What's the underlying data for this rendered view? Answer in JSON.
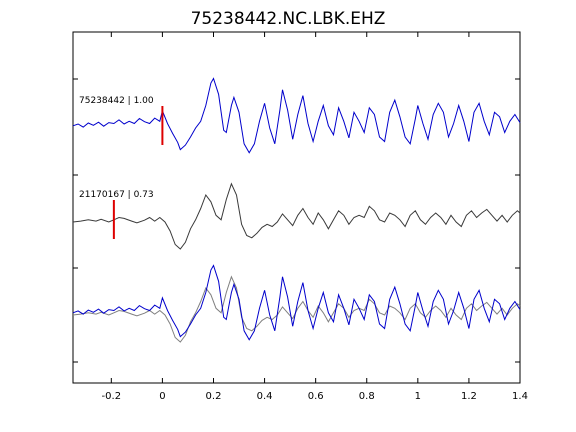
{
  "chart_data": {
    "type": "line",
    "title": "75238442.NC.LBK.EHZ",
    "xlabel": "",
    "ylabel": "",
    "xlim": [
      -0.35,
      1.4
    ],
    "xticks": [
      -0.2,
      0,
      0.2,
      0.4,
      0.6,
      0.8,
      1,
      1.2,
      1.4
    ],
    "xtick_labels": [
      "-0.2",
      "0",
      "0.2",
      "0.4",
      "0.6",
      "0.8",
      "1",
      "1.2",
      "1.4"
    ],
    "grid": false,
    "legend": "none",
    "colors": {
      "master": "#0000cc",
      "template": "#3a3a3a",
      "overlay_template": "#808080",
      "pick": "#dd0000"
    },
    "traces": [
      {
        "label": "75238442 | 1.00",
        "color_key": "master",
        "pick_time": 0.0,
        "points": [
          [
            -0.35,
            0.05
          ],
          [
            -0.33,
            0.09
          ],
          [
            -0.31,
            0.02
          ],
          [
            -0.29,
            0.11
          ],
          [
            -0.27,
            0.06
          ],
          [
            -0.25,
            0.13
          ],
          [
            -0.23,
            0.04
          ],
          [
            -0.21,
            0.12
          ],
          [
            -0.19,
            0.1
          ],
          [
            -0.17,
            0.18
          ],
          [
            -0.15,
            0.09
          ],
          [
            -0.13,
            0.15
          ],
          [
            -0.11,
            0.1
          ],
          [
            -0.09,
            0.21
          ],
          [
            -0.07,
            0.14
          ],
          [
            -0.05,
            0.1
          ],
          [
            -0.03,
            0.22
          ],
          [
            -0.01,
            0.15
          ],
          [
            0.0,
            0.38
          ],
          [
            0.02,
            0.1
          ],
          [
            0.04,
            -0.12
          ],
          [
            0.06,
            -0.32
          ],
          [
            0.07,
            -0.48
          ],
          [
            0.09,
            -0.38
          ],
          [
            0.11,
            -0.2
          ],
          [
            0.13,
            0.0
          ],
          [
            0.15,
            0.15
          ],
          [
            0.17,
            0.5
          ],
          [
            0.19,
            1.0
          ],
          [
            0.2,
            1.1
          ],
          [
            0.22,
            0.75
          ],
          [
            0.24,
            -0.05
          ],
          [
            0.25,
            -0.1
          ],
          [
            0.27,
            0.5
          ],
          [
            0.28,
            0.68
          ],
          [
            0.3,
            0.35
          ],
          [
            0.32,
            -0.35
          ],
          [
            0.34,
            -0.55
          ],
          [
            0.36,
            -0.35
          ],
          [
            0.38,
            0.15
          ],
          [
            0.4,
            0.55
          ],
          [
            0.42,
            0.0
          ],
          [
            0.44,
            -0.35
          ],
          [
            0.46,
            0.4
          ],
          [
            0.47,
            0.85
          ],
          [
            0.49,
            0.4
          ],
          [
            0.51,
            -0.25
          ],
          [
            0.53,
            0.3
          ],
          [
            0.55,
            0.72
          ],
          [
            0.57,
            0.1
          ],
          [
            0.59,
            -0.3
          ],
          [
            0.61,
            0.15
          ],
          [
            0.63,
            0.5
          ],
          [
            0.65,
            0.05
          ],
          [
            0.67,
            -0.15
          ],
          [
            0.69,
            0.45
          ],
          [
            0.71,
            0.15
          ],
          [
            0.73,
            -0.22
          ],
          [
            0.75,
            0.35
          ],
          [
            0.77,
            0.15
          ],
          [
            0.79,
            -0.1
          ],
          [
            0.81,
            0.45
          ],
          [
            0.83,
            0.3
          ],
          [
            0.85,
            -0.2
          ],
          [
            0.87,
            -0.3
          ],
          [
            0.89,
            0.35
          ],
          [
            0.91,
            0.62
          ],
          [
            0.93,
            0.25
          ],
          [
            0.95,
            -0.2
          ],
          [
            0.97,
            -0.35
          ],
          [
            0.99,
            0.2
          ],
          [
            1.0,
            0.5
          ],
          [
            1.02,
            0.1
          ],
          [
            1.04,
            -0.25
          ],
          [
            1.06,
            0.3
          ],
          [
            1.08,
            0.55
          ],
          [
            1.1,
            0.35
          ],
          [
            1.12,
            -0.2
          ],
          [
            1.14,
            0.1
          ],
          [
            1.16,
            0.5
          ],
          [
            1.18,
            0.15
          ],
          [
            1.2,
            -0.3
          ],
          [
            1.22,
            0.35
          ],
          [
            1.24,
            0.55
          ],
          [
            1.26,
            0.15
          ],
          [
            1.28,
            -0.15
          ],
          [
            1.3,
            0.35
          ],
          [
            1.32,
            0.25
          ],
          [
            1.34,
            -0.1
          ],
          [
            1.36,
            0.15
          ],
          [
            1.38,
            0.3
          ],
          [
            1.4,
            0.12
          ]
        ]
      },
      {
        "label": "21170167 | 0.73",
        "color_key": "template",
        "pick_time": -0.19,
        "points": [
          [
            -0.35,
            0.0
          ],
          [
            -0.32,
            0.02
          ],
          [
            -0.29,
            0.05
          ],
          [
            -0.26,
            0.02
          ],
          [
            -0.24,
            0.06
          ],
          [
            -0.21,
            0.0
          ],
          [
            -0.19,
            0.05
          ],
          [
            -0.17,
            0.1
          ],
          [
            -0.15,
            0.08
          ],
          [
            -0.12,
            0.02
          ],
          [
            -0.1,
            -0.02
          ],
          [
            -0.07,
            0.04
          ],
          [
            -0.05,
            0.1
          ],
          [
            -0.03,
            0.02
          ],
          [
            -0.01,
            0.1
          ],
          [
            0.01,
            0.0
          ],
          [
            0.03,
            -0.2
          ],
          [
            0.05,
            -0.5
          ],
          [
            0.07,
            -0.6
          ],
          [
            0.09,
            -0.45
          ],
          [
            0.11,
            -0.15
          ],
          [
            0.13,
            0.05
          ],
          [
            0.15,
            0.3
          ],
          [
            0.17,
            0.6
          ],
          [
            0.19,
            0.45
          ],
          [
            0.21,
            0.15
          ],
          [
            0.23,
            0.05
          ],
          [
            0.25,
            0.5
          ],
          [
            0.27,
            0.85
          ],
          [
            0.29,
            0.6
          ],
          [
            0.31,
            -0.05
          ],
          [
            0.33,
            -0.3
          ],
          [
            0.35,
            -0.35
          ],
          [
            0.37,
            -0.25
          ],
          [
            0.39,
            -0.12
          ],
          [
            0.41,
            -0.05
          ],
          [
            0.43,
            -0.1
          ],
          [
            0.45,
            0.0
          ],
          [
            0.47,
            0.18
          ],
          [
            0.49,
            0.05
          ],
          [
            0.51,
            -0.08
          ],
          [
            0.53,
            0.15
          ],
          [
            0.55,
            0.3
          ],
          [
            0.57,
            0.1
          ],
          [
            0.59,
            -0.05
          ],
          [
            0.61,
            0.2
          ],
          [
            0.63,
            0.05
          ],
          [
            0.65,
            -0.15
          ],
          [
            0.67,
            0.05
          ],
          [
            0.69,
            0.25
          ],
          [
            0.71,
            0.15
          ],
          [
            0.73,
            -0.05
          ],
          [
            0.75,
            0.1
          ],
          [
            0.77,
            0.15
          ],
          [
            0.79,
            0.1
          ],
          [
            0.81,
            0.35
          ],
          [
            0.83,
            0.25
          ],
          [
            0.85,
            0.05
          ],
          [
            0.87,
            0.0
          ],
          [
            0.89,
            0.2
          ],
          [
            0.91,
            0.15
          ],
          [
            0.93,
            0.05
          ],
          [
            0.95,
            -0.1
          ],
          [
            0.97,
            0.15
          ],
          [
            0.99,
            0.25
          ],
          [
            1.01,
            0.05
          ],
          [
            1.03,
            -0.05
          ],
          [
            1.05,
            0.1
          ],
          [
            1.07,
            0.2
          ],
          [
            1.09,
            0.1
          ],
          [
            1.11,
            -0.05
          ],
          [
            1.13,
            0.15
          ],
          [
            1.15,
            0.0
          ],
          [
            1.17,
            -0.1
          ],
          [
            1.19,
            0.15
          ],
          [
            1.21,
            0.25
          ],
          [
            1.23,
            0.1
          ],
          [
            1.25,
            0.2
          ],
          [
            1.27,
            0.28
          ],
          [
            1.29,
            0.15
          ],
          [
            1.31,
            0.02
          ],
          [
            1.33,
            0.15
          ],
          [
            1.35,
            0.0
          ],
          [
            1.37,
            0.15
          ],
          [
            1.39,
            0.25
          ],
          [
            1.4,
            0.2
          ]
        ]
      }
    ],
    "overlay": {
      "description_series": [
        "75238442 | 1.00",
        "21170167 | 0.73"
      ],
      "series_color_keys": [
        "master",
        "overlay_template"
      ]
    }
  }
}
